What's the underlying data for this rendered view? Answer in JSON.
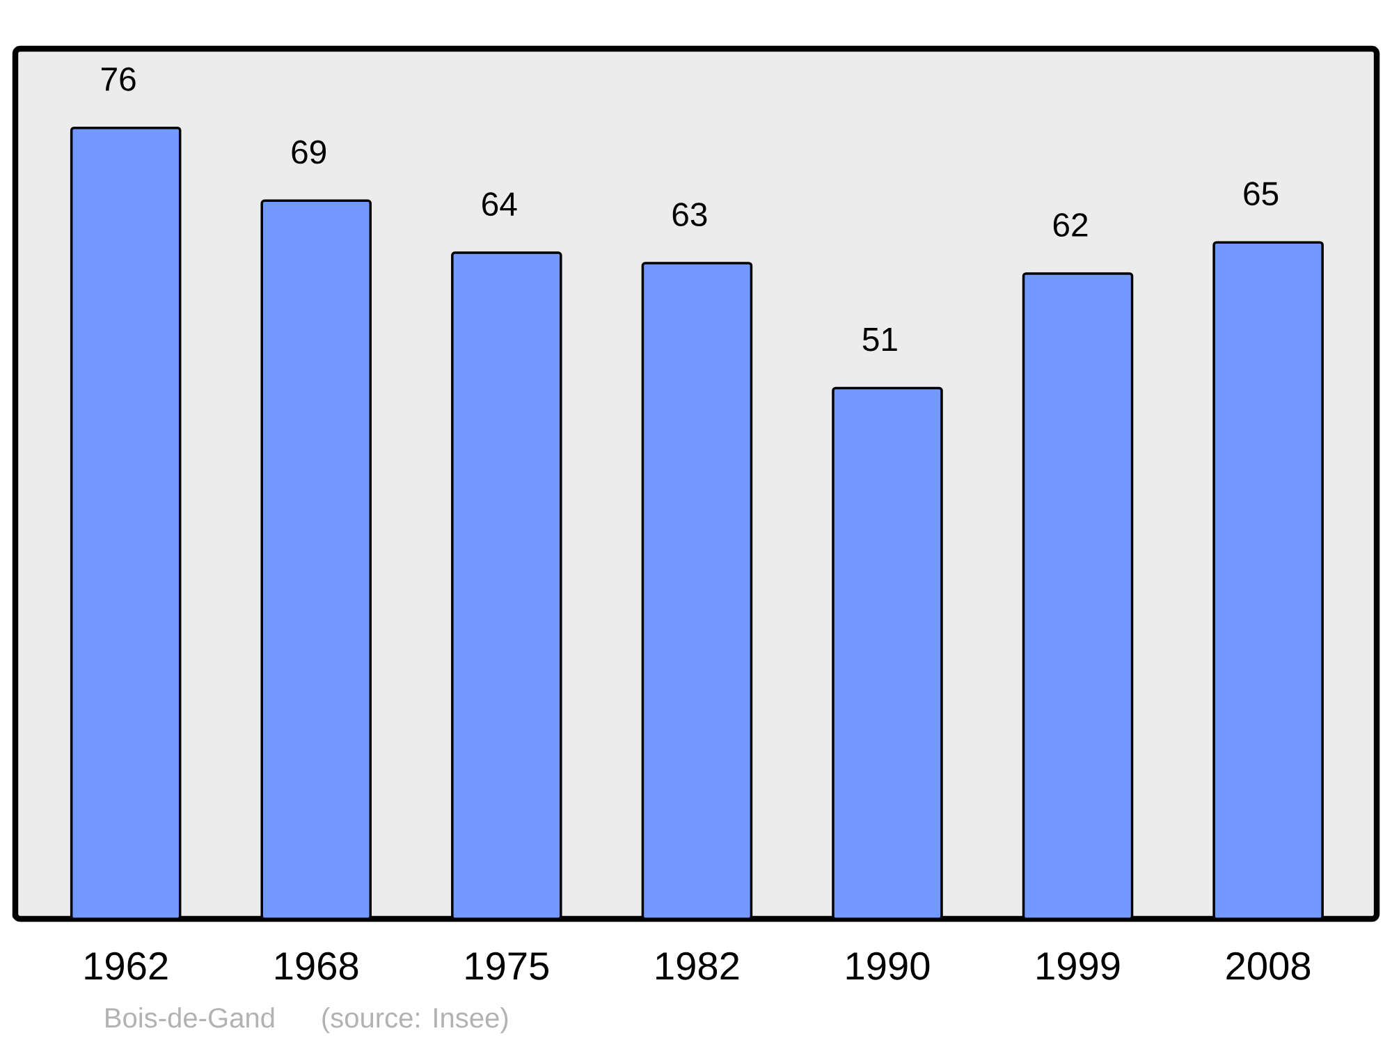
{
  "chart_data": {
    "type": "bar",
    "categories": [
      "1962",
      "1968",
      "1975",
      "1982",
      "1990",
      "1999",
      "2008"
    ],
    "values": [
      76,
      69,
      64,
      63,
      51,
      62,
      65
    ],
    "color": "#7399ff",
    "data_labels": true,
    "annotations": [
      "Bois-de-Gand",
      "(source: Insee)"
    ]
  }
}
